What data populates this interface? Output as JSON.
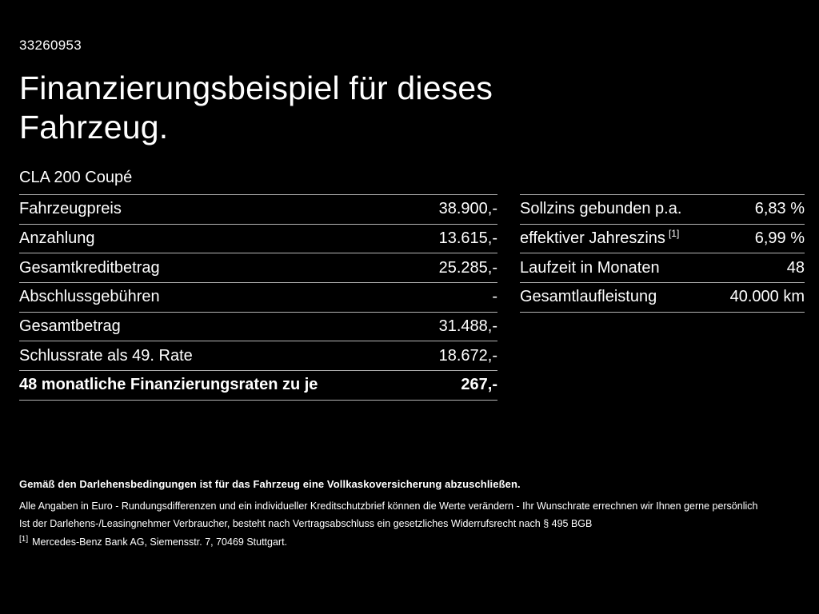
{
  "page": {
    "id_number": "33260953",
    "title_line1": "Finanzierungsbeispiel für dieses",
    "title_line2": "Fahrzeug.",
    "model": "CLA 200 Coupé"
  },
  "finance_table": {
    "rows": [
      {
        "label": "Fahrzeugpreis",
        "value": "38.900,-"
      },
      {
        "label": "Anzahlung",
        "value": "13.615,-"
      },
      {
        "label": "Gesamtkreditbetrag",
        "value": "25.285,-"
      },
      {
        "label": "Abschlussgebühren",
        "value": "-"
      },
      {
        "label": "Gesamtbetrag",
        "value": "31.488,-"
      },
      {
        "label": "Schlussrate als 49. Rate",
        "value": "18.672,-"
      },
      {
        "label": "48 monatliche Finanzierungsraten zu je",
        "value": "267,-"
      }
    ]
  },
  "conditions_table": {
    "rows": [
      {
        "label": "Sollzins gebunden p.a.",
        "superscript": "",
        "value": "6,83 %"
      },
      {
        "label": "effektiver Jahreszins",
        "superscript": "[1]",
        "value": "6,99 %"
      },
      {
        "label": "Laufzeit in Monaten",
        "superscript": "",
        "value": "48"
      },
      {
        "label": "Gesamtlaufleistung",
        "superscript": "",
        "value": "40.000 km"
      }
    ]
  },
  "footnotes": {
    "bold_note": "Gemäß den Darlehensbedingungen ist für das Fahrzeug eine Vollkaskoversicherung abzuschließen.",
    "note1": "Alle Angaben in Euro - Rundungsdifferenzen und ein individueller Kreditschutzbrief können die Werte verändern - Ihr Wunschrate errechnen wir Ihnen gerne persönlich",
    "note2": "Ist der Darlehens-/Leasingnehmer Verbraucher, besteht nach Vertragsabschluss ein gesetzliches Widerrufsrecht nach § 495 BGB",
    "footnote_ref": "[1]",
    "footnote_text": "Mercedes-Benz Bank AG, Siemensstr. 7, 70469 Stuttgart."
  },
  "colors": {
    "background": "#000000",
    "text": "#ffffff",
    "divider": "#b5b5b5"
  }
}
